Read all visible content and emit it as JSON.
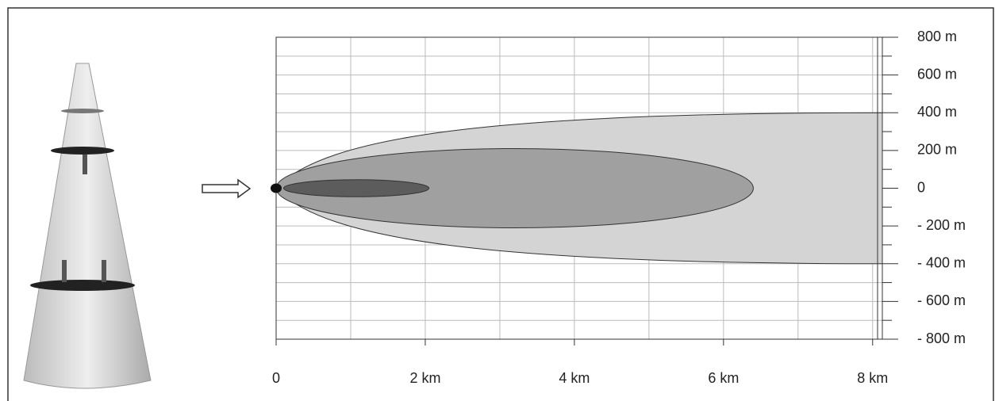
{
  "chart_data": {
    "type": "zone",
    "xlim": [
      0,
      8.13
    ],
    "ylim": [
      -800,
      800
    ],
    "xticks": [
      0,
      {
        "value": 2,
        "label": "2 km"
      },
      {
        "value": 4,
        "label": "4 km"
      },
      {
        "value": 6,
        "label": "6 km"
      },
      {
        "value": 8,
        "label": "8 km"
      }
    ],
    "yticks": [
      {
        "value": 800,
        "label": "800 m"
      },
      {
        "value": 600,
        "label": "600 m"
      },
      {
        "value": 400,
        "label": "400 m"
      },
      {
        "value": 200,
        "label": "200 m"
      },
      0,
      {
        "value": -200,
        "label": "- 200 m"
      },
      {
        "value": -400,
        "label": "- 400 m"
      },
      {
        "value": -600,
        "label": "- 600 m"
      },
      {
        "value": -800,
        "label": "- 800 m"
      }
    ],
    "grid": true,
    "zones": [
      {
        "shape": "plume",
        "x": [
          0,
          8.13
        ],
        "y": [
          -400,
          400
        ],
        "color": "#d4d4d4"
      },
      {
        "shape": "ellipse",
        "x": [
          0,
          6.4
        ],
        "y": [
          -210,
          210
        ],
        "color": "#a0a0a0"
      },
      {
        "shape": "ellipse",
        "x": [
          0.1,
          2.05
        ],
        "y": [
          -45,
          45
        ],
        "color": "#5c5c5c"
      }
    ]
  }
}
